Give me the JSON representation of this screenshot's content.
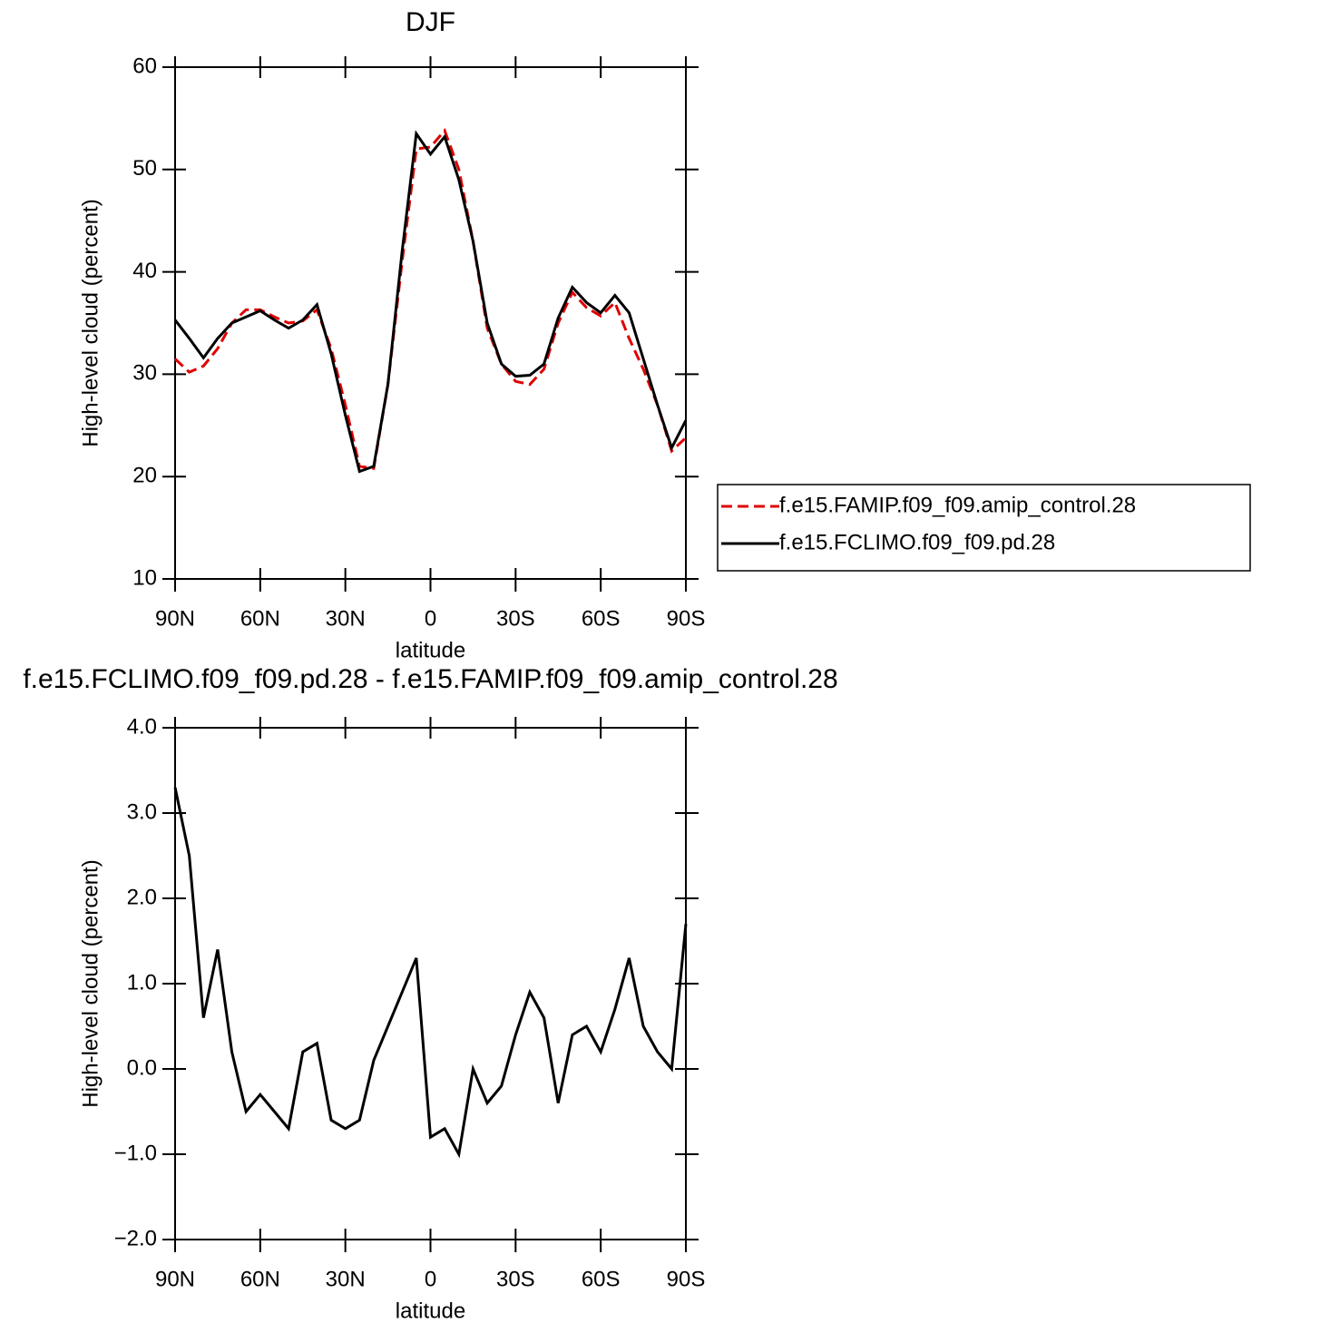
{
  "chart_data": [
    {
      "type": "line",
      "title": "DJF",
      "xlabel": "latitude",
      "ylabel": "High-level cloud (percent)",
      "x": [
        90,
        85,
        80,
        75,
        70,
        65,
        60,
        55,
        50,
        45,
        40,
        35,
        30,
        25,
        20,
        15,
        10,
        5,
        0,
        -5,
        -10,
        -15,
        -20,
        -25,
        -30,
        -35,
        -40,
        -45,
        -50,
        -55,
        -60,
        -65,
        -70,
        -75,
        -80,
        -85,
        -90
      ],
      "series": [
        {
          "name": "f.e15.FAMIP.f09_f09.amip_control.28",
          "color": "#e00000",
          "dash": true,
          "values": [
            31.5,
            30.2,
            30.8,
            32.5,
            35.0,
            36.3,
            36.3,
            35.6,
            35.0,
            35.2,
            36.3,
            32.5,
            27.0,
            21.0,
            20.8,
            29.0,
            41.0,
            52.0,
            52.2,
            53.8,
            50.0,
            43.0,
            34.5,
            31.0,
            29.3,
            29.0,
            30.5,
            35.0,
            38.0,
            36.5,
            35.7,
            37.0,
            33.5,
            30.5,
            27.0,
            22.5,
            23.8
          ]
        },
        {
          "name": "f.e15.FCLIMO.f09_f09.pd.28",
          "color": "#000000",
          "dash": false,
          "values": [
            35.3,
            33.5,
            31.6,
            33.5,
            35.0,
            35.6,
            36.2,
            35.3,
            34.5,
            35.3,
            36.8,
            32.0,
            26.0,
            20.5,
            21.0,
            29.0,
            42.0,
            53.5,
            51.5,
            53.2,
            49.0,
            43.0,
            35.0,
            31.0,
            29.8,
            29.9,
            31.0,
            35.5,
            38.5,
            37.0,
            36.0,
            37.7,
            36.0,
            31.5,
            27.0,
            22.8,
            25.5
          ]
        }
      ],
      "xlim": [
        90,
        -90
      ],
      "xticks": [
        {
          "value": 90,
          "label": "90N"
        },
        {
          "value": 60,
          "label": "60N"
        },
        {
          "value": 30,
          "label": "30N"
        },
        0,
        {
          "value": -30,
          "label": "30S"
        },
        {
          "value": -60,
          "label": "60S"
        },
        {
          "value": -90,
          "label": "90S"
        }
      ],
      "ylim": [
        10,
        60
      ],
      "yticks": [
        10,
        20,
        30,
        40,
        50,
        60
      ],
      "legend": "right"
    },
    {
      "type": "line",
      "title": "f.e15.FCLIMO.f09_f09.pd.28 - f.e15.FAMIP.f09_f09.amip_control.28",
      "xlabel": "latitude",
      "ylabel": "High-level cloud (percent)",
      "x": [
        90,
        85,
        80,
        75,
        70,
        65,
        60,
        55,
        50,
        45,
        40,
        35,
        30,
        25,
        20,
        15,
        10,
        5,
        0,
        -5,
        -10,
        -15,
        -20,
        -25,
        -30,
        -35,
        -40,
        -45,
        -50,
        -55,
        -60,
        -65,
        -70,
        -75,
        -80,
        -85,
        -90
      ],
      "values": [
        3.3,
        2.5,
        0.6,
        1.4,
        0.2,
        -0.5,
        -0.3,
        -0.5,
        -0.7,
        0.2,
        0.3,
        -0.6,
        -0.7,
        -0.6,
        0.1,
        0.5,
        0.9,
        1.3,
        -0.8,
        -0.7,
        -1.0,
        0.0,
        -0.4,
        -0.2,
        0.4,
        0.9,
        0.6,
        -0.4,
        0.4,
        0.5,
        0.2,
        0.7,
        1.3,
        0.5,
        0.2,
        0.0,
        1.7
      ],
      "color": "#000000",
      "xlim": [
        90,
        -90
      ],
      "xticks": [
        {
          "value": 90,
          "label": "90N"
        },
        {
          "value": 60,
          "label": "60N"
        },
        {
          "value": 30,
          "label": "30N"
        },
        0,
        {
          "value": -30,
          "label": "30S"
        },
        {
          "value": -60,
          "label": "60S"
        },
        {
          "value": -90,
          "label": "90S"
        }
      ],
      "ylim": [
        -2,
        4
      ],
      "yticks": [
        {
          "value": -2,
          "label": "−2.0"
        },
        {
          "value": -1,
          "label": "−1.0"
        },
        {
          "value": 0,
          "label": "0.0"
        },
        {
          "value": 1,
          "label": "1.0"
        },
        {
          "value": 2,
          "label": "2.0"
        },
        {
          "value": 3,
          "label": "3.0"
        },
        {
          "value": 4,
          "label": "4.0"
        }
      ]
    }
  ]
}
